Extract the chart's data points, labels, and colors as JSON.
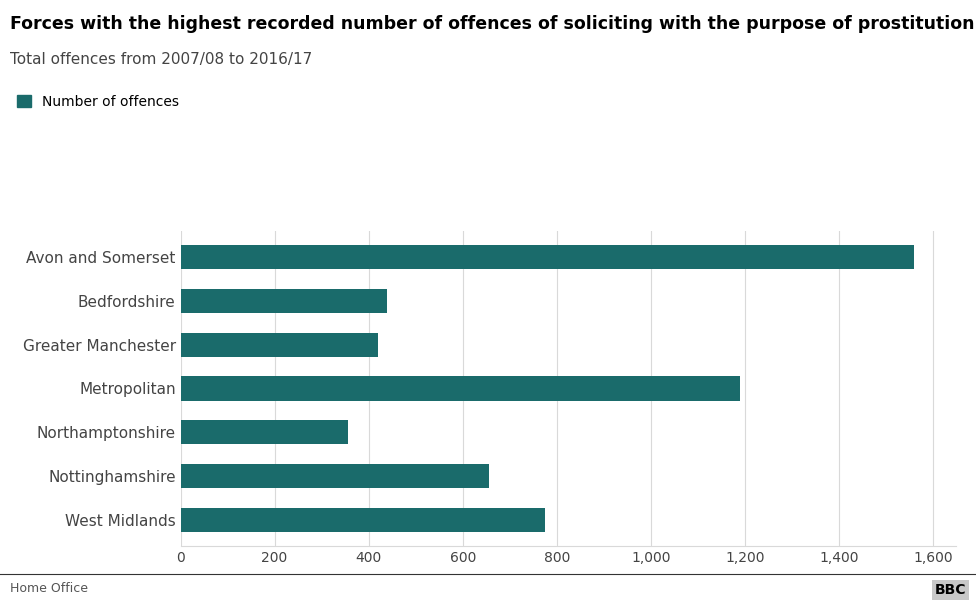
{
  "title": "Forces with the highest recorded number of offences of soliciting with the purpose of prostitution",
  "subtitle": "Total offences from 2007/08 to 2016/17",
  "legend_label": "Number of offences",
  "categories": [
    "Avon and Somerset",
    "Bedfordshire",
    "Greater Manchester",
    "Metropolitan",
    "Northamptonshire",
    "Nottinghamshire",
    "West Midlands"
  ],
  "values": [
    1560,
    440,
    420,
    1190,
    355,
    655,
    775
  ],
  "bar_color": "#1a6b6b",
  "background_color": "#ffffff",
  "xlim": [
    0,
    1650
  ],
  "xticks": [
    0,
    200,
    400,
    600,
    800,
    1000,
    1200,
    1400,
    1600
  ],
  "xtick_labels": [
    "0",
    "200",
    "400",
    "600",
    "800",
    "1,000",
    "1,200",
    "1,400",
    "1,600"
  ],
  "title_fontsize": 12.5,
  "subtitle_fontsize": 11,
  "label_fontsize": 11,
  "tick_fontsize": 10,
  "footer_left": "Home Office",
  "footer_right": "BBC",
  "grid_color": "#d9d9d9"
}
